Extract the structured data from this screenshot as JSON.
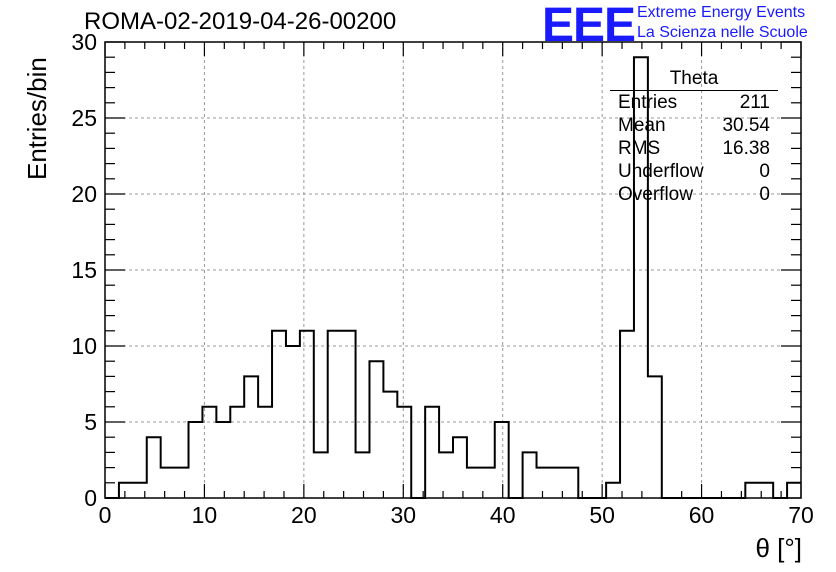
{
  "title": "ROMA-02-2019-04-26-00200",
  "logo": {
    "mark": "EEE",
    "line1": "Extreme Energy Events",
    "line2": "La Scienza nelle Scuole",
    "color": "#1a1aff"
  },
  "stats": {
    "name": "Theta",
    "rows": [
      {
        "label": "Entries",
        "value": "211"
      },
      {
        "label": "Mean",
        "value": "30.54"
      },
      {
        "label": "RMS",
        "value": "16.38"
      },
      {
        "label": "Underflow",
        "value": "0"
      },
      {
        "label": "Overflow",
        "value": "0"
      }
    ]
  },
  "chart_data": {
    "type": "bar",
    "histogram": true,
    "title": "ROMA-02-2019-04-26-00200",
    "xlabel": "θ [°]",
    "ylabel": "Entries/bin",
    "xlim": [
      0,
      70
    ],
    "ylim": [
      0,
      30
    ],
    "xticks": [
      0,
      10,
      20,
      30,
      40,
      50,
      60,
      70
    ],
    "yticks": [
      0,
      5,
      10,
      15,
      20,
      25,
      30
    ],
    "grid": true,
    "bin_width": 1.4,
    "bin_start": 0,
    "values": [
      0,
      1,
      1,
      4,
      2,
      2,
      5,
      6,
      5,
      6,
      8,
      6,
      11,
      10,
      11,
      3,
      11,
      11,
      3,
      9,
      7,
      6,
      0,
      6,
      3,
      4,
      2,
      2,
      5,
      0,
      3,
      2,
      2,
      2,
      0,
      0,
      1,
      11,
      29,
      8,
      0,
      0,
      0,
      0,
      0,
      0,
      1,
      1,
      0,
      1
    ]
  }
}
